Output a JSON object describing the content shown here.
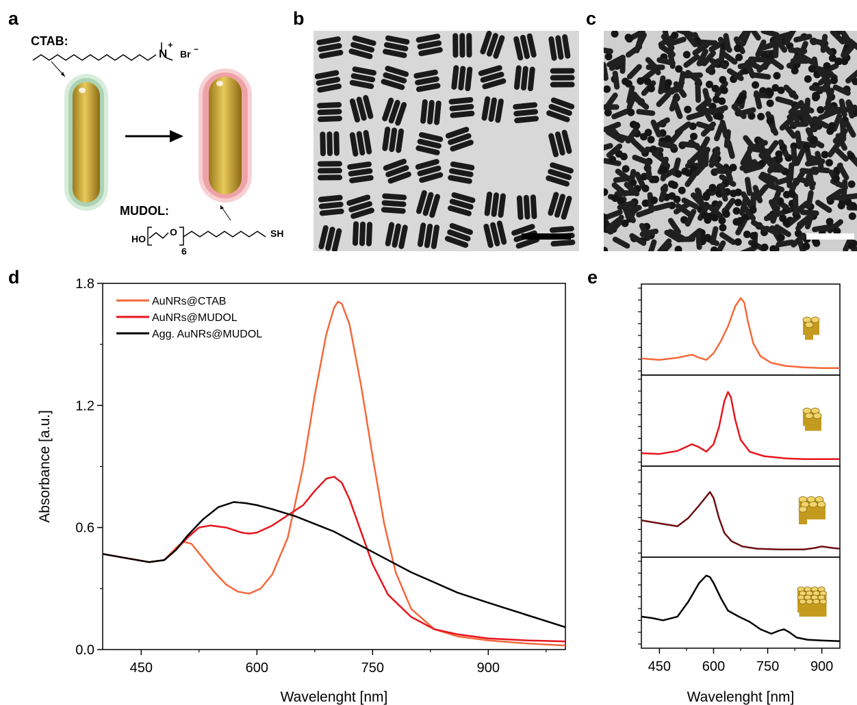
{
  "panels": {
    "a": "a",
    "b": "b",
    "c": "c",
    "d": "d",
    "e": "e"
  },
  "scheme": {
    "ctab_label": "CTAB:",
    "ctab_formula_charge": "+",
    "ctab_formula_n": "N",
    "ctab_formula_br": "Br",
    "ctab_formula_minus": "−",
    "mudol_label": "MUDOL:",
    "mudol_ho": "HO",
    "mudol_o": "O",
    "mudol_n": "6",
    "mudol_sh": "SH"
  },
  "colors": {
    "ctab": "#f4683a",
    "mudol": "#e8141c",
    "agg": "#000000",
    "e3": "#6b0f12",
    "tem_bg": "#d9d9d9",
    "rod": "#1a1a1a",
    "gold": "#c9a227"
  },
  "chart_data": [
    {
      "type": "line",
      "panel": "d",
      "xlabel": "Wavelenght [nm]",
      "ylabel": "Absorbance [a.u.]",
      "xlim": [
        400,
        1000
      ],
      "ylim": [
        0,
        1.8
      ],
      "xticks": [
        450,
        600,
        750,
        900
      ],
      "yticks": [
        0.0,
        0.6,
        1.2,
        1.8
      ],
      "ytick_labels": [
        "0.0",
        "0.6",
        "1.2",
        "1.8"
      ],
      "legend_position": "top-left",
      "series": [
        {
          "name": "AuNRs@CTAB",
          "color": "#f4683a",
          "x": [
            400,
            430,
            460,
            480,
            495,
            505,
            515,
            530,
            545,
            560,
            575,
            590,
            605,
            620,
            640,
            660,
            675,
            690,
            700,
            705,
            710,
            720,
            735,
            750,
            765,
            780,
            800,
            830,
            860,
            900,
            950,
            1000
          ],
          "y": [
            0.47,
            0.45,
            0.43,
            0.44,
            0.5,
            0.53,
            0.52,
            0.45,
            0.38,
            0.32,
            0.285,
            0.275,
            0.3,
            0.37,
            0.55,
            0.9,
            1.25,
            1.55,
            1.68,
            1.71,
            1.7,
            1.6,
            1.3,
            0.95,
            0.62,
            0.38,
            0.2,
            0.1,
            0.065,
            0.045,
            0.03,
            0.02
          ]
        },
        {
          "name": "AuNRs@MUDOL",
          "color": "#e8141c",
          "x": [
            400,
            430,
            460,
            480,
            495,
            510,
            525,
            540,
            560,
            580,
            590,
            600,
            620,
            640,
            660,
            675,
            690,
            700,
            710,
            720,
            735,
            750,
            770,
            800,
            830,
            860,
            900,
            950,
            1000
          ],
          "y": [
            0.47,
            0.45,
            0.43,
            0.44,
            0.49,
            0.55,
            0.6,
            0.61,
            0.6,
            0.575,
            0.57,
            0.575,
            0.61,
            0.66,
            0.71,
            0.78,
            0.84,
            0.85,
            0.82,
            0.74,
            0.58,
            0.42,
            0.27,
            0.16,
            0.1,
            0.075,
            0.055,
            0.045,
            0.04
          ]
        },
        {
          "name": "Agg. AuNRs@MUDOL",
          "color": "#000000",
          "x": [
            400,
            430,
            460,
            480,
            495,
            510,
            530,
            550,
            570,
            585,
            600,
            620,
            650,
            680,
            700,
            720,
            750,
            780,
            800,
            830,
            860,
            900,
            950,
            1000
          ],
          "y": [
            0.47,
            0.45,
            0.43,
            0.44,
            0.49,
            0.56,
            0.64,
            0.7,
            0.725,
            0.72,
            0.71,
            0.69,
            0.655,
            0.61,
            0.58,
            0.54,
            0.48,
            0.42,
            0.38,
            0.33,
            0.28,
            0.23,
            0.17,
            0.11
          ]
        }
      ]
    },
    {
      "type": "line",
      "panel": "e",
      "xlabel": "Wavelenght [nm]",
      "xlim": [
        400,
        950
      ],
      "xticks": [
        450,
        600,
        750,
        900
      ],
      "series": [
        {
          "color": "#f4683a",
          "x": [
            400,
            450,
            500,
            540,
            560,
            580,
            600,
            620,
            640,
            660,
            675,
            685,
            695,
            710,
            730,
            760,
            800,
            850,
            900,
            950
          ],
          "y": [
            0.15,
            0.13,
            0.16,
            0.2,
            0.16,
            0.13,
            0.22,
            0.38,
            0.58,
            0.85,
            0.96,
            0.9,
            0.65,
            0.35,
            0.18,
            0.09,
            0.05,
            0.03,
            0.02,
            0.02
          ]
        },
        {
          "color": "#e8141c",
          "x": [
            400,
            450,
            500,
            540,
            560,
            580,
            600,
            615,
            630,
            640,
            648,
            660,
            675,
            700,
            740,
            800,
            850,
            900,
            950
          ],
          "y": [
            0.1,
            0.09,
            0.13,
            0.22,
            0.18,
            0.12,
            0.22,
            0.45,
            0.8,
            0.92,
            0.85,
            0.55,
            0.28,
            0.12,
            0.06,
            0.03,
            0.02,
            0.02,
            0.02
          ]
        },
        {
          "color": "#6b0f12",
          "x": [
            400,
            450,
            500,
            530,
            560,
            580,
            590,
            600,
            615,
            630,
            650,
            680,
            720,
            780,
            850,
            880,
            900,
            930,
            950
          ],
          "y": [
            0.42,
            0.38,
            0.34,
            0.45,
            0.62,
            0.74,
            0.8,
            0.72,
            0.45,
            0.25,
            0.14,
            0.07,
            0.04,
            0.03,
            0.03,
            0.05,
            0.07,
            0.05,
            0.04
          ]
        },
        {
          "color": "#000000",
          "x": [
            400,
            430,
            460,
            500,
            530,
            560,
            580,
            590,
            600,
            620,
            640,
            670,
            700,
            730,
            760,
            780,
            795,
            810,
            830,
            860,
            900,
            950
          ],
          "y": [
            0.35,
            0.33,
            0.3,
            0.35,
            0.55,
            0.8,
            0.9,
            0.88,
            0.8,
            0.6,
            0.43,
            0.35,
            0.28,
            0.18,
            0.12,
            0.16,
            0.18,
            0.14,
            0.07,
            0.04,
            0.03,
            0.02
          ]
        }
      ]
    }
  ]
}
